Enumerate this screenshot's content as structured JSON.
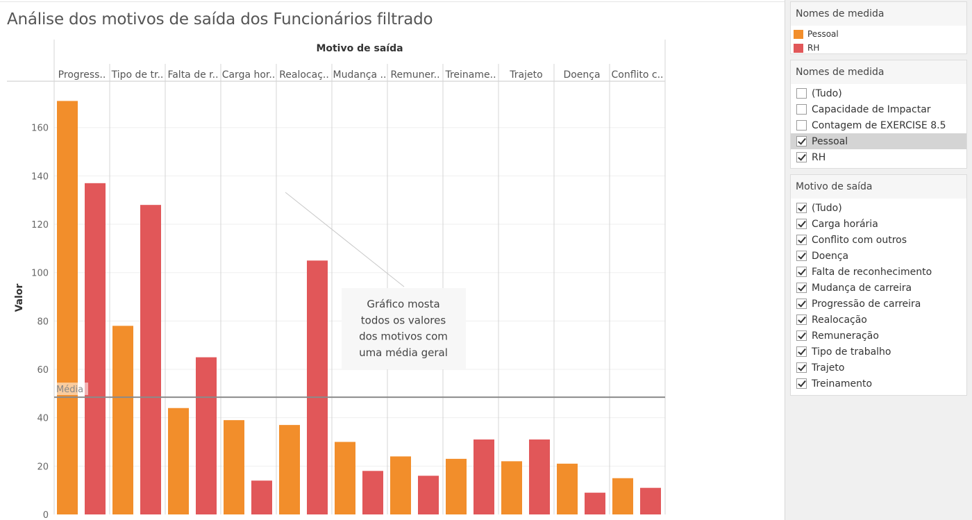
{
  "title": "Análise dos motivos de saída dos Funcionários filtrado",
  "chart_data": {
    "type": "bar",
    "header": "Motivo de saída",
    "ylabel": "Valor",
    "ylim": [
      0,
      175
    ],
    "yticks": [
      0,
      20,
      40,
      60,
      80,
      100,
      120,
      140,
      160
    ],
    "categories": [
      "Progress..",
      "Tipo de tr..",
      "Falta de r..",
      "Carga hor..",
      "Realocaç..",
      "Mudança ..",
      "Remuner..",
      "Treiname..",
      "Trajeto",
      "Doença",
      "Conflito c.."
    ],
    "series": [
      {
        "name": "Pessoal",
        "color": "#f28e2b",
        "values": [
          171,
          78,
          44,
          39,
          37,
          30,
          24,
          23,
          22,
          21,
          15
        ]
      },
      {
        "name": "RH",
        "color": "#e15759",
        "values": [
          137,
          128,
          65,
          14,
          105,
          18,
          16,
          31,
          31,
          9,
          11
        ]
      }
    ],
    "reference_line": {
      "label": "Média",
      "value": 48.5
    },
    "annotation": {
      "lines": [
        "Gráfico mosta",
        "todos os valores",
        "dos motivos com",
        "uma média geral"
      ]
    }
  },
  "legend": {
    "title": "Nomes de medida",
    "items": [
      {
        "label": "Pessoal",
        "color": "#f28e2b"
      },
      {
        "label": "RH",
        "color": "#e15759"
      }
    ]
  },
  "filter_measures": {
    "title": "Nomes de medida",
    "items": [
      {
        "label": "(Tudo)",
        "checked": false
      },
      {
        "label": "Capacidade de Impactar",
        "checked": false
      },
      {
        "label": "Contagem de EXERCISE 8.5",
        "checked": false
      },
      {
        "label": "Pessoal",
        "checked": true,
        "selected": true
      },
      {
        "label": "RH",
        "checked": true
      }
    ]
  },
  "filter_reasons": {
    "title": "Motivo de saída",
    "items": [
      {
        "label": "(Tudo)",
        "checked": true
      },
      {
        "label": "Carga horária",
        "checked": true
      },
      {
        "label": "Conflito com outros",
        "checked": true
      },
      {
        "label": "Doença",
        "checked": true
      },
      {
        "label": "Falta de reconhecimento",
        "checked": true
      },
      {
        "label": "Mudança de carreira",
        "checked": true
      },
      {
        "label": "Progressão de carreira",
        "checked": true
      },
      {
        "label": "Realocação",
        "checked": true
      },
      {
        "label": "Remuneração",
        "checked": true
      },
      {
        "label": "Tipo de trabalho",
        "checked": true
      },
      {
        "label": "Trajeto",
        "checked": true
      },
      {
        "label": "Treinamento",
        "checked": true
      }
    ]
  }
}
